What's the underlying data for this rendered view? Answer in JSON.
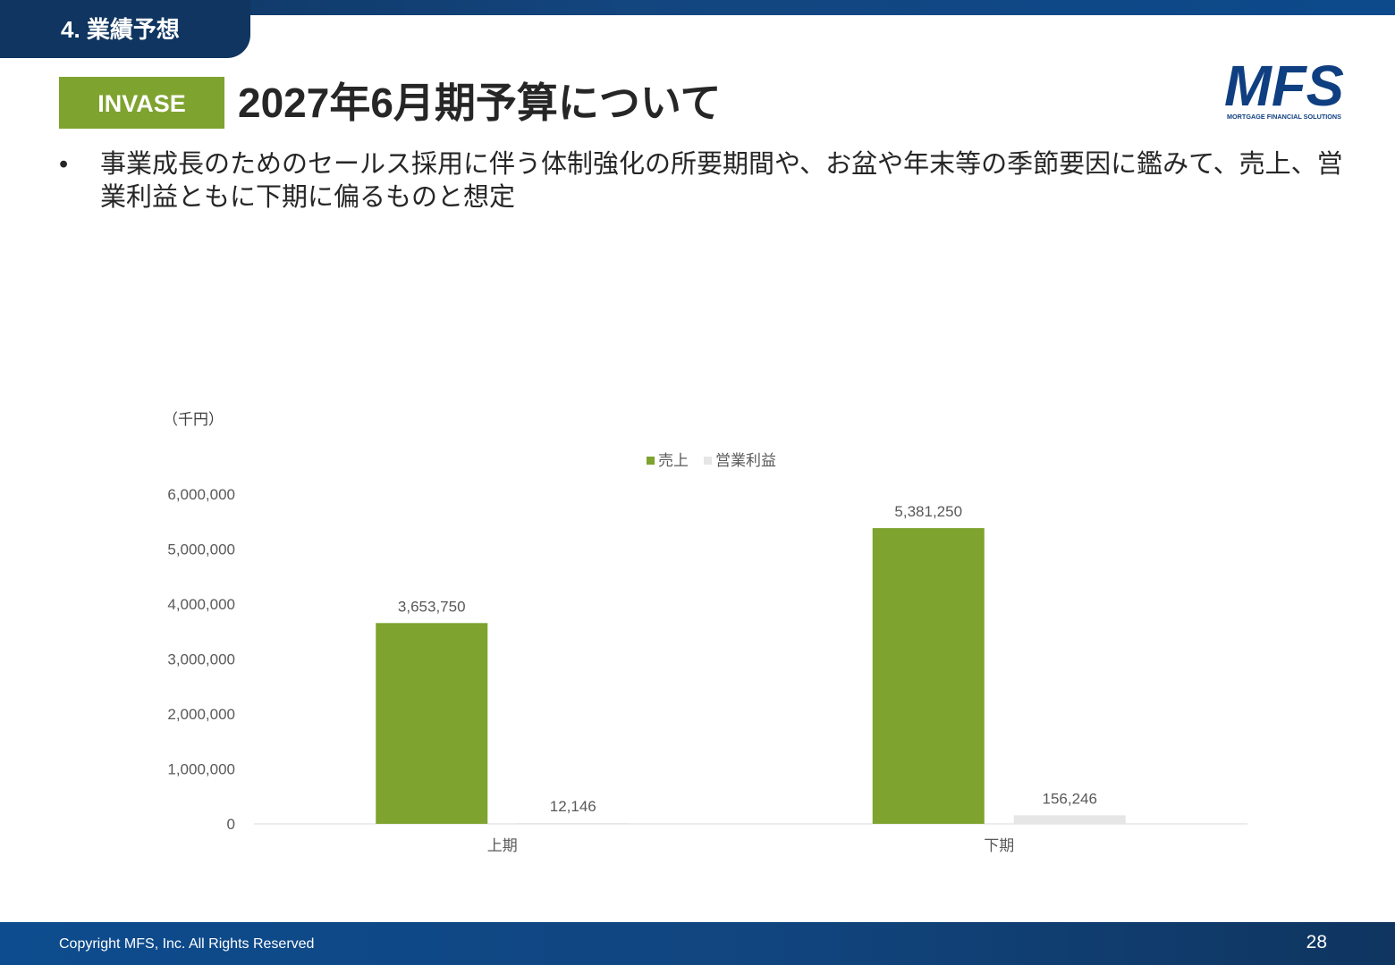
{
  "header": {
    "section": "4. 業績予想",
    "badge": "INVASE",
    "title": "2027年6月期予算について",
    "logo_text": "MFS",
    "logo_tagline": "MORTGAGE FINANCIAL SOLUTIONS"
  },
  "bullets": [
    {
      "marker": "•",
      "text": "事業成長のためのセールス採用に伴う体制強化の所要期間や、お盆や年末等の季節要因に鑑みて、売上、営業利益ともに下期に偏るものと想定"
    }
  ],
  "chart_data": {
    "type": "bar",
    "unit_label": "（千円）",
    "categories": [
      "上期",
      "下期"
    ],
    "series": [
      {
        "name": "売上",
        "values": [
          3653750,
          5381250
        ],
        "labels": [
          "3,653,750",
          "5,381,250"
        ],
        "color": "#7ea32f"
      },
      {
        "name": "営業利益",
        "values": [
          12146,
          156246
        ],
        "labels": [
          "12,146",
          "156,246"
        ],
        "color": "#e6e6e6"
      }
    ],
    "ylim": [
      0,
      6000000
    ],
    "yticks": [
      0,
      1000000,
      2000000,
      3000000,
      4000000,
      5000000,
      6000000
    ],
    "ytick_labels": [
      "0",
      "1,000,000",
      "2,000,000",
      "3,000,000",
      "4,000,000",
      "5,000,000",
      "6,000,000"
    ],
    "grid": false,
    "legend_position": "top"
  },
  "footer": {
    "copyright": "Copyright MFS, Inc. All Rights Reserved",
    "page_number": "28"
  },
  "colors": {
    "navy": "#0f3560",
    "green": "#7ea32f",
    "text": "#262626",
    "axis_text": "#595959"
  }
}
